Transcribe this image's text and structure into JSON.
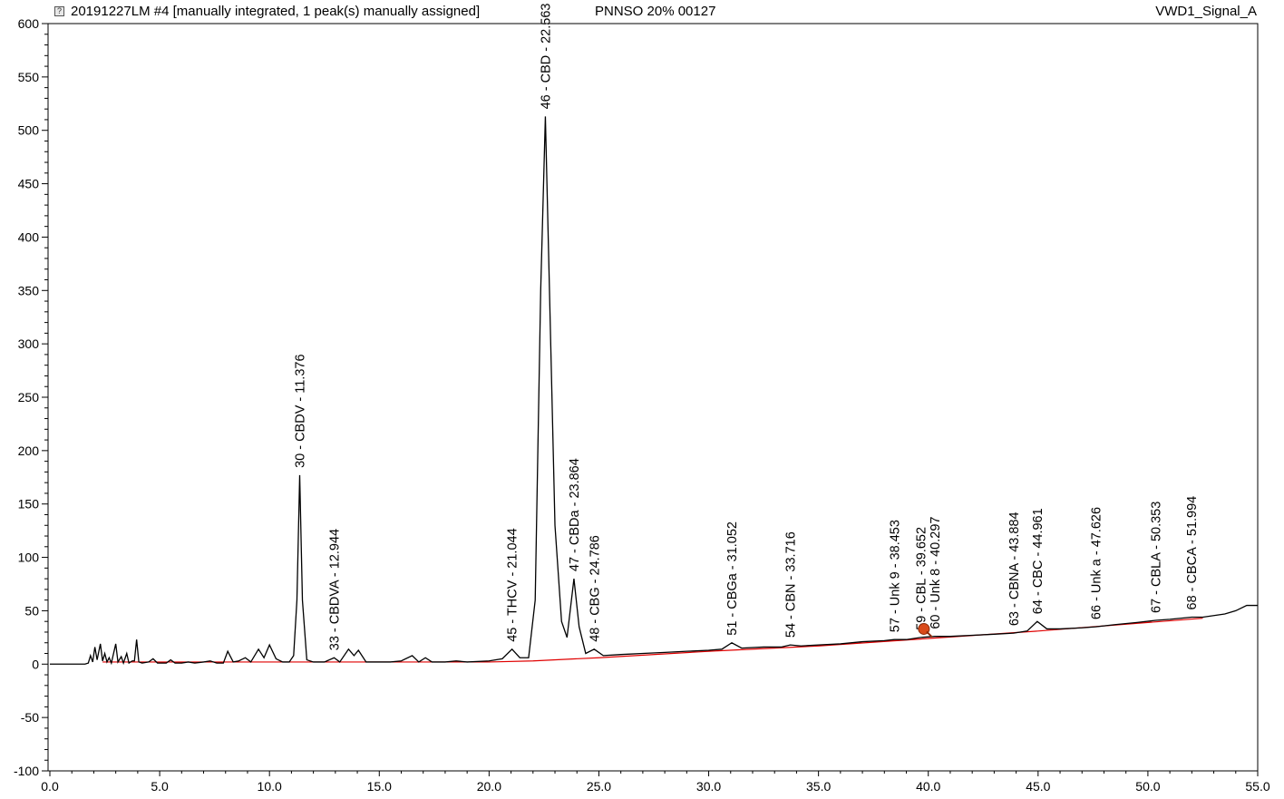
{
  "header": {
    "left": "20191227LM #4 [manually integrated, 1 peak(s) manually assigned]",
    "center": "PNNSO 20% 00127",
    "right": "VWD1_Signal_A"
  },
  "colors": {
    "trace": "#000000",
    "baseline": "#e00000",
    "marker": "#d94a1a",
    "shoulder": "#d020d0"
  },
  "chart_data": {
    "type": "line",
    "title": "",
    "xlabel": "",
    "ylabel": "",
    "xlim": [
      0,
      55
    ],
    "ylim": [
      -100,
      600
    ],
    "x_ticks": [
      "0.0",
      "5.0",
      "10.0",
      "15.0",
      "20.0",
      "25.0",
      "30.0",
      "35.0",
      "40.0",
      "45.0",
      "50.0",
      "55.0"
    ],
    "y_ticks": [
      "-100",
      "-50",
      "0",
      "50",
      "100",
      "150",
      "200",
      "250",
      "300",
      "350",
      "400",
      "450",
      "500",
      "550",
      "600"
    ],
    "grid": false,
    "series": [
      {
        "points": [
          [
            0,
            0
          ],
          [
            1.6,
            0
          ],
          [
            1.75,
            1
          ],
          [
            1.85,
            8
          ],
          [
            1.95,
            2
          ],
          [
            2.05,
            16
          ],
          [
            2.15,
            4
          ],
          [
            2.3,
            19
          ],
          [
            2.4,
            3
          ],
          [
            2.5,
            10
          ],
          [
            2.6,
            2
          ],
          [
            2.7,
            6
          ],
          [
            2.8,
            1
          ],
          [
            3.0,
            19
          ],
          [
            3.1,
            2
          ],
          [
            3.25,
            7
          ],
          [
            3.35,
            1
          ],
          [
            3.5,
            10
          ],
          [
            3.6,
            1
          ],
          [
            3.75,
            3
          ],
          [
            3.85,
            3
          ],
          [
            3.95,
            23
          ],
          [
            4.05,
            2
          ],
          [
            4.2,
            1
          ],
          [
            4.5,
            2
          ],
          [
            4.7,
            5
          ],
          [
            4.9,
            1
          ],
          [
            5.3,
            1
          ],
          [
            5.5,
            4
          ],
          [
            5.7,
            1
          ],
          [
            6.0,
            1
          ],
          [
            6.3,
            2
          ],
          [
            6.6,
            1
          ],
          [
            7.0,
            2
          ],
          [
            7.3,
            3
          ],
          [
            7.6,
            1
          ],
          [
            7.9,
            1
          ],
          [
            8.1,
            12
          ],
          [
            8.35,
            2
          ],
          [
            8.6,
            3
          ],
          [
            8.9,
            6
          ],
          [
            9.15,
            2
          ],
          [
            9.5,
            14
          ],
          [
            9.75,
            6
          ],
          [
            10.0,
            18
          ],
          [
            10.3,
            5
          ],
          [
            10.6,
            2
          ],
          [
            10.9,
            2
          ],
          [
            11.1,
            8
          ],
          [
            11.25,
            60
          ],
          [
            11.376,
            177
          ],
          [
            11.5,
            60
          ],
          [
            11.7,
            4
          ],
          [
            12.0,
            2
          ],
          [
            12.5,
            2
          ],
          [
            12.944,
            6
          ],
          [
            13.2,
            2
          ],
          [
            13.6,
            14
          ],
          [
            13.85,
            8
          ],
          [
            14.05,
            13
          ],
          [
            14.4,
            2
          ],
          [
            14.8,
            2
          ],
          [
            15.5,
            2
          ],
          [
            16.0,
            3
          ],
          [
            16.5,
            8
          ],
          [
            16.8,
            2
          ],
          [
            17.1,
            6
          ],
          [
            17.4,
            2
          ],
          [
            18.0,
            2
          ],
          [
            18.5,
            3
          ],
          [
            19.0,
            2
          ],
          [
            20.0,
            3
          ],
          [
            20.6,
            5
          ],
          [
            21.044,
            14
          ],
          [
            21.4,
            6
          ],
          [
            21.8,
            6
          ],
          [
            22.1,
            60
          ],
          [
            22.35,
            350
          ],
          [
            22.563,
            513
          ],
          [
            22.75,
            350
          ],
          [
            23.0,
            130
          ],
          [
            23.3,
            40
          ],
          [
            23.55,
            25
          ],
          [
            23.864,
            80
          ],
          [
            24.1,
            35
          ],
          [
            24.4,
            10
          ],
          [
            24.786,
            14
          ],
          [
            25.2,
            8
          ],
          [
            26.0,
            9
          ],
          [
            27.0,
            10
          ],
          [
            28.0,
            11
          ],
          [
            29.0,
            12
          ],
          [
            30.0,
            13
          ],
          [
            30.6,
            14
          ],
          [
            31.052,
            20
          ],
          [
            31.5,
            15
          ],
          [
            32.5,
            16
          ],
          [
            33.3,
            16
          ],
          [
            33.716,
            18
          ],
          [
            34.2,
            17
          ],
          [
            35.0,
            18
          ],
          [
            36.0,
            19
          ],
          [
            37.0,
            21
          ],
          [
            38.0,
            22
          ],
          [
            38.453,
            23
          ],
          [
            39.0,
            23
          ],
          [
            39.652,
            25
          ],
          [
            40.297,
            26
          ],
          [
            41.0,
            26
          ],
          [
            42.0,
            27
          ],
          [
            43.0,
            28
          ],
          [
            43.884,
            29
          ],
          [
            44.5,
            31
          ],
          [
            44.961,
            40
          ],
          [
            45.4,
            33
          ],
          [
            46.0,
            33
          ],
          [
            47.0,
            34
          ],
          [
            47.626,
            35
          ],
          [
            48.5,
            37
          ],
          [
            49.5,
            39
          ],
          [
            50.353,
            41
          ],
          [
            51.0,
            42
          ],
          [
            51.994,
            44
          ],
          [
            52.5,
            44
          ],
          [
            53.5,
            47
          ],
          [
            54.0,
            50
          ],
          [
            54.5,
            55
          ],
          [
            55.0,
            55
          ]
        ]
      }
    ],
    "baseline_points": [
      [
        2.4,
        2
      ],
      [
        5,
        2
      ],
      [
        10,
        2
      ],
      [
        15,
        2
      ],
      [
        20,
        2
      ],
      [
        22,
        3
      ],
      [
        25,
        6
      ],
      [
        30,
        12
      ],
      [
        35,
        17
      ],
      [
        40,
        24
      ],
      [
        45,
        31
      ],
      [
        50,
        39
      ],
      [
        52.5,
        43
      ]
    ],
    "peaks": [
      {
        "label": "30 - CBDV - 11.376",
        "x": 11.376,
        "y": 177
      },
      {
        "label": "33 - CBDVA - 12.944",
        "x": 12.944,
        "y": 6
      },
      {
        "label": "45 - THCV - 21.044",
        "x": 21.044,
        "y": 14
      },
      {
        "label": "46 - CBD - 22.563",
        "x": 22.563,
        "y": 513
      },
      {
        "label": "47 - CBDa - 23.864",
        "x": 23.864,
        "y": 80
      },
      {
        "label": "48 - CBG - 24.786",
        "x": 24.786,
        "y": 14
      },
      {
        "label": "51 - CBGa - 31.052",
        "x": 31.052,
        "y": 20
      },
      {
        "label": "54 - CBN - 33.716",
        "x": 33.716,
        "y": 18
      },
      {
        "label": "57 - Unk 9 - 38.453",
        "x": 38.453,
        "y": 23
      },
      {
        "label": "59 - CBL - 39.652",
        "x": 39.652,
        "y": 25
      },
      {
        "label": "60 - Unk 8 - 40.297",
        "x": 40.297,
        "y": 26
      },
      {
        "label": "63 - CBNA - 43.884",
        "x": 43.884,
        "y": 29
      },
      {
        "label": "64 - CBC - 44.961",
        "x": 44.961,
        "y": 40
      },
      {
        "label": "66 - Unk a - 47.626",
        "x": 47.626,
        "y": 35
      },
      {
        "label": "67 - CBLA - 50.353",
        "x": 50.353,
        "y": 41
      },
      {
        "label": "68 - CBCA - 51.994",
        "x": 51.994,
        "y": 44
      }
    ],
    "marker": {
      "x": 39.8,
      "y": 33
    }
  }
}
